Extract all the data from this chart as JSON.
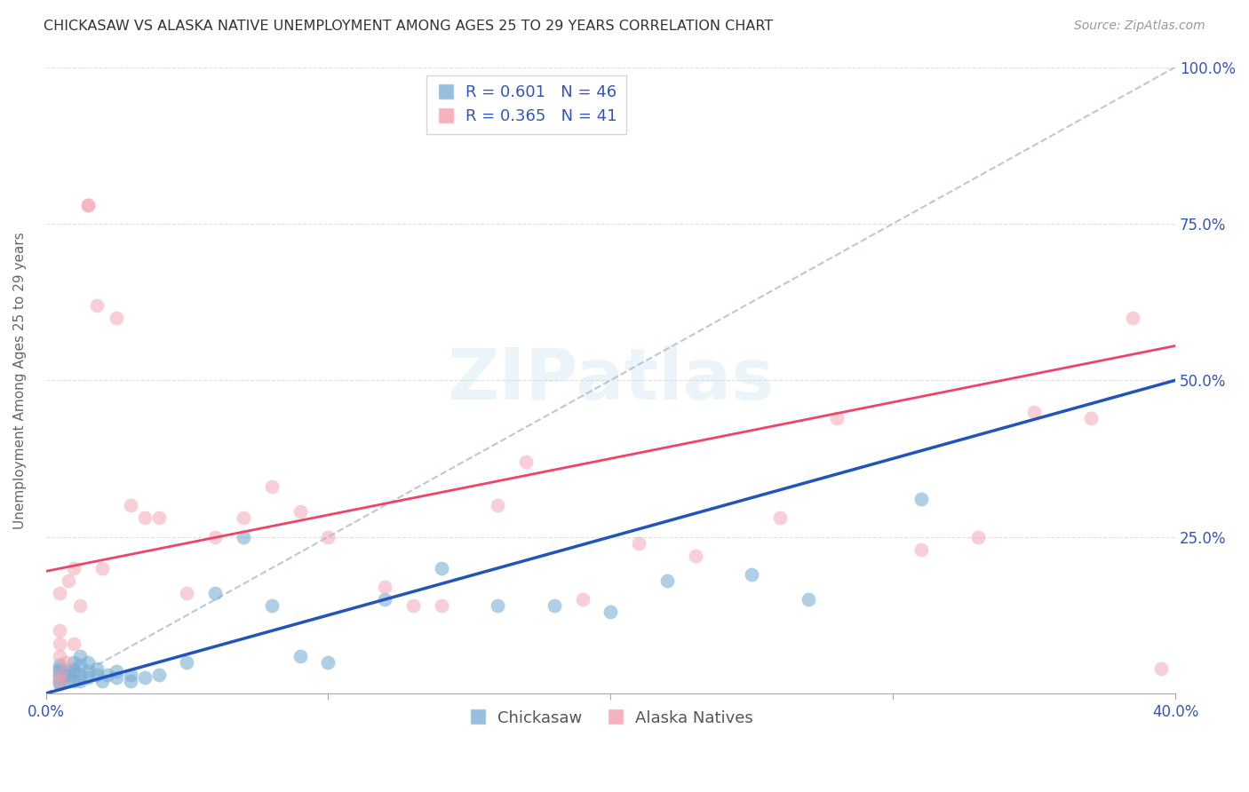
{
  "title": "CHICKASAW VS ALASKA NATIVE UNEMPLOYMENT AMONG AGES 25 TO 29 YEARS CORRELATION CHART",
  "source": "Source: ZipAtlas.com",
  "ylabel": "Unemployment Among Ages 25 to 29 years",
  "xlim": [
    0.0,
    0.4
  ],
  "ylim": [
    0.0,
    1.0
  ],
  "blue_color": "#7BAFD4",
  "pink_color": "#F4A0B0",
  "blue_line_color": "#2255BB",
  "pink_line_color": "#EE4466",
  "dash_line_color": "#AABBCC",
  "chickasaw_legend": "Chickasaw",
  "alaska_legend": "Alaska Natives",
  "watermark": "ZIPatlas",
  "blue_scatter_x": [
    0.005,
    0.005,
    0.005,
    0.005,
    0.005,
    0.005,
    0.005,
    0.008,
    0.008,
    0.008,
    0.01,
    0.01,
    0.01,
    0.01,
    0.012,
    0.012,
    0.012,
    0.012,
    0.015,
    0.015,
    0.015,
    0.018,
    0.018,
    0.02,
    0.022,
    0.025,
    0.025,
    0.03,
    0.03,
    0.035,
    0.04,
    0.05,
    0.06,
    0.07,
    0.08,
    0.09,
    0.1,
    0.12,
    0.14,
    0.16,
    0.18,
    0.2,
    0.22,
    0.25,
    0.27,
    0.31
  ],
  "blue_scatter_y": [
    0.015,
    0.02,
    0.025,
    0.03,
    0.035,
    0.04,
    0.045,
    0.02,
    0.03,
    0.035,
    0.02,
    0.035,
    0.04,
    0.05,
    0.02,
    0.03,
    0.045,
    0.06,
    0.025,
    0.035,
    0.05,
    0.03,
    0.04,
    0.02,
    0.03,
    0.025,
    0.035,
    0.02,
    0.03,
    0.025,
    0.03,
    0.05,
    0.16,
    0.25,
    0.14,
    0.06,
    0.05,
    0.15,
    0.2,
    0.14,
    0.14,
    0.13,
    0.18,
    0.19,
    0.15,
    0.31
  ],
  "pink_scatter_x": [
    0.005,
    0.005,
    0.005,
    0.005,
    0.005,
    0.005,
    0.007,
    0.008,
    0.01,
    0.01,
    0.012,
    0.015,
    0.015,
    0.018,
    0.02,
    0.025,
    0.03,
    0.035,
    0.04,
    0.05,
    0.06,
    0.07,
    0.08,
    0.09,
    0.1,
    0.12,
    0.13,
    0.14,
    0.16,
    0.17,
    0.19,
    0.21,
    0.23,
    0.26,
    0.28,
    0.31,
    0.33,
    0.35,
    0.37,
    0.385,
    0.395
  ],
  "pink_scatter_y": [
    0.02,
    0.03,
    0.06,
    0.08,
    0.1,
    0.16,
    0.05,
    0.18,
    0.08,
    0.2,
    0.14,
    0.78,
    0.78,
    0.62,
    0.2,
    0.6,
    0.3,
    0.28,
    0.28,
    0.16,
    0.25,
    0.28,
    0.33,
    0.29,
    0.25,
    0.17,
    0.14,
    0.14,
    0.3,
    0.37,
    0.15,
    0.24,
    0.22,
    0.28,
    0.44,
    0.23,
    0.25,
    0.45,
    0.44,
    0.6,
    0.04
  ],
  "blue_line_x0": 0.0,
  "blue_line_y0": 0.0,
  "blue_line_x1": 0.4,
  "blue_line_y1": 0.5,
  "pink_line_x0": 0.0,
  "pink_line_y0": 0.195,
  "pink_line_x1": 0.4,
  "pink_line_y1": 0.555,
  "dash_line_x0": 0.0,
  "dash_line_y0": 0.0,
  "dash_line_x1": 0.4,
  "dash_line_y1": 1.0
}
